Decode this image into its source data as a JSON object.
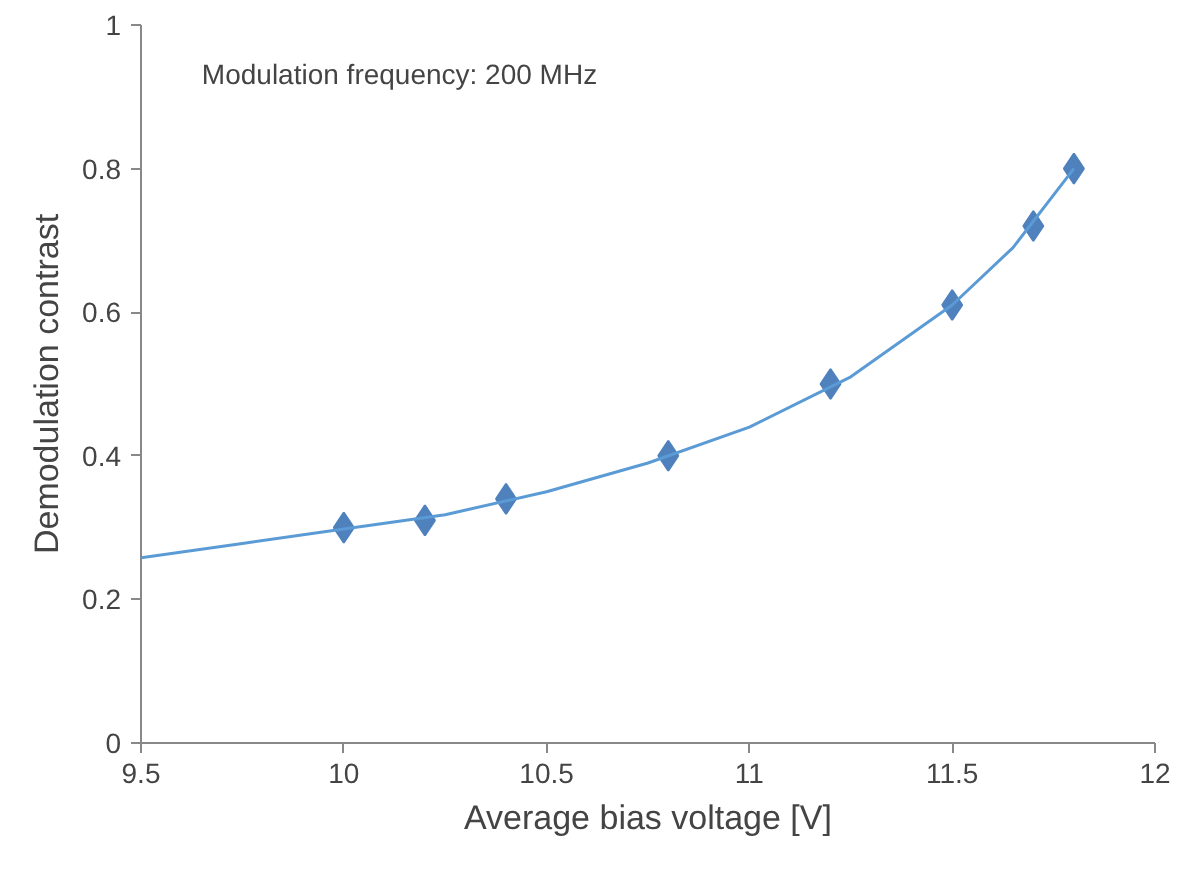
{
  "chart_data": {
    "type": "scatter",
    "xlabel": "Average bias voltage [V]",
    "ylabel": "Demodulation contrast",
    "annotations": [
      "Modulation frequency: 200 MHz"
    ],
    "xlim": [
      9.5,
      12
    ],
    "xticks": [
      9.5,
      10,
      10.5,
      11,
      11.5,
      12
    ],
    "ylim": [
      0,
      1
    ],
    "yticks": [
      0,
      0.2,
      0.4,
      0.6,
      0.8,
      1
    ],
    "grid": false,
    "marker": "diamond",
    "series": [
      {
        "color": "#4f81bd",
        "x": [
          10,
          10.2,
          10.4,
          10.8,
          11.2,
          11.5,
          11.7,
          11.8
        ],
        "values": [
          0.3,
          0.31,
          0.34,
          0.4,
          0.5,
          0.61,
          0.72,
          0.8
        ]
      },
      {
        "type": "line",
        "color": "#5b9bd5",
        "marker": "none",
        "line_style": "solid",
        "x": [
          9.5,
          9.75,
          10,
          10.25,
          10.5,
          10.75,
          11,
          11.25,
          11.5,
          11.65,
          11.8
        ],
        "values": [
          0.258,
          0.278,
          0.298,
          0.318,
          0.35,
          0.39,
          0.44,
          0.51,
          0.61,
          0.69,
          0.8
        ]
      }
    ]
  }
}
